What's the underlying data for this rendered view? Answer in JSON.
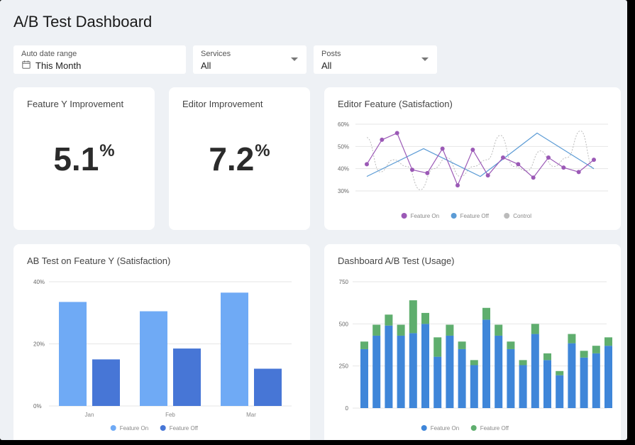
{
  "header": {
    "title": "A/B Test Dashboard"
  },
  "filters": [
    {
      "label": "Auto date range",
      "value": "This Month",
      "icon": "calendar-icon"
    },
    {
      "label": "Services",
      "value": "All",
      "icon": "chevron-down-icon"
    },
    {
      "label": "Posts",
      "value": "All",
      "icon": "chevron-down-icon"
    }
  ],
  "kpis": [
    {
      "title": "Feature Y Improvement",
      "value": "5.1",
      "unit": "%"
    },
    {
      "title": "Editor Improvement",
      "value": "7.2",
      "unit": "%"
    }
  ],
  "colors": {
    "feature_on_line": "#9b59b6",
    "feature_off_line": "#5b9bd5",
    "control_line": "#bbbbbb",
    "bar_light": "#6faaf5",
    "bar_dark": "#4776d6",
    "usage_on": "#3f86d9",
    "usage_off": "#5fae6e"
  },
  "chart_data": [
    {
      "title": "Editor Feature (Satisfaction)",
      "type": "line",
      "ylim": [
        30,
        60
      ],
      "y_ticks": [
        "60%",
        "50%",
        "40%",
        "30%"
      ],
      "series": [
        {
          "name": "Feature On",
          "values": [
            42,
            53,
            56,
            39.5,
            38,
            49,
            32.5,
            48.5,
            37,
            45,
            42,
            36,
            45,
            40.5,
            38.5,
            44
          ]
        },
        {
          "name": "Feature Off",
          "values": [
            36.5,
            49,
            36.5,
            56,
            40
          ]
        },
        {
          "name": "Control",
          "values": [
            54,
            38.5,
            44,
            41,
            30.5,
            40,
            45,
            36.5,
            41,
            44,
            55,
            41,
            39,
            48,
            41,
            45,
            57,
            40
          ]
        }
      ],
      "legend": "bottom"
    },
    {
      "title": "AB Test on Feature Y (Satisfaction)",
      "type": "bar",
      "categories": [
        "Jan",
        "Feb",
        "Mar"
      ],
      "ylim": [
        0,
        40
      ],
      "y_ticks": [
        "40%",
        "20%",
        "0%"
      ],
      "series": [
        {
          "name": "Feature On",
          "values": [
            33.5,
            30.5,
            36.5
          ]
        },
        {
          "name": "Feature Off",
          "values": [
            15,
            18.5,
            12
          ]
        }
      ],
      "legend": "bottom"
    },
    {
      "title": "Dashboard A/B Test (Usage)",
      "type": "bar",
      "stacked": true,
      "ylim": [
        0,
        750
      ],
      "y_ticks": [
        "750",
        "500",
        "250",
        "0"
      ],
      "series": [
        {
          "name": "Feature On",
          "values": [
            350,
            430,
            490,
            430,
            445,
            500,
            305,
            430,
            350,
            255,
            525,
            430,
            350,
            255,
            440,
            285,
            195,
            385,
            300,
            325,
            370
          ]
        },
        {
          "name": "Feature Off",
          "values": [
            45,
            65,
            65,
            65,
            195,
            65,
            115,
            65,
            45,
            30,
            70,
            65,
            45,
            30,
            60,
            40,
            25,
            55,
            40,
            45,
            50
          ]
        }
      ],
      "legend": "bottom"
    }
  ]
}
